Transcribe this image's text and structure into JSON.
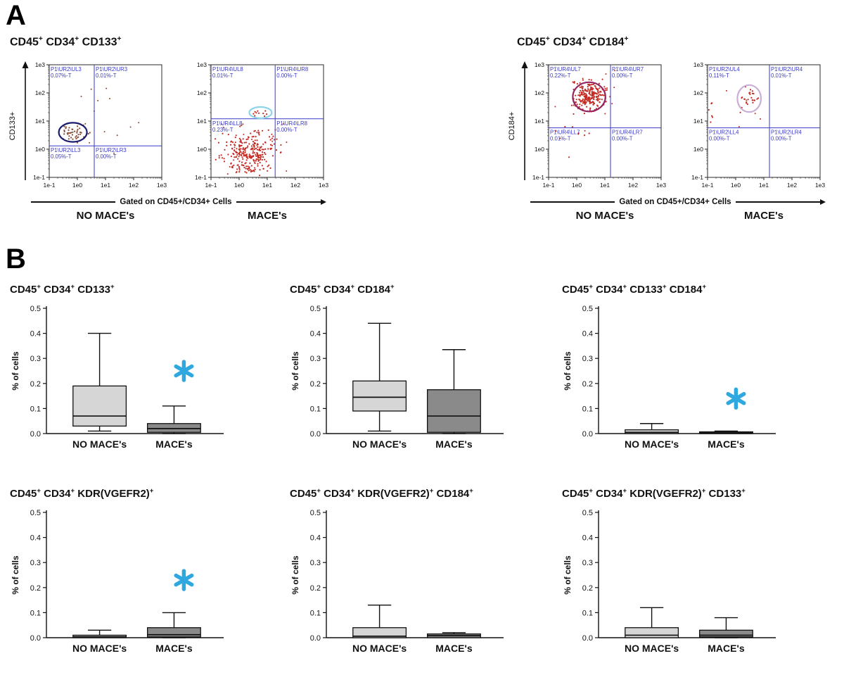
{
  "colors": {
    "asterisk": "#2fa8e0",
    "quadrant": "#3a3ac8",
    "frame": "#2a2a2a",
    "no_mace_fill": "#d6d6d6",
    "mace_fill": "#8a8a8a"
  },
  "panel_a": {
    "label": "A"
  },
  "panel_b": {
    "label": "B"
  },
  "chart_data": [
    {
      "type": "scatter",
      "group": "CD45+ CD34+ CD133+",
      "condition": "NO MACE's",
      "ylabel": "CD133+",
      "xlabel": "Gated on CD45+/CD34+ Cells",
      "x_ticks": [
        "1e-1",
        "1e0",
        "1e1",
        "1e2",
        "1e3"
      ],
      "y_ticks": [
        "1e-1",
        "1e0",
        "1e1",
        "1e2",
        "1e3"
      ],
      "cross": {
        "x": 0.4,
        "y": 0.28
      },
      "quadrants": [
        {
          "name": "P1\\UR2\\UL3",
          "value": "0.07%-T"
        },
        {
          "name": "P1\\UR2\\UR3",
          "value": "0.01%-T"
        },
        {
          "name": "P1\\UR2\\LL3",
          "value": "0.05%-T"
        },
        {
          "name": "P1\\UR2\\LR3",
          "value": "0.00%-T"
        }
      ],
      "gate_ellipse": {
        "cx": 0.21,
        "cy": 0.4,
        "rx": 0.125,
        "ry": 0.085,
        "color": "#1b1b6e"
      },
      "point_color": "#8a4a30",
      "clusters": [
        {
          "cx": 0.21,
          "cy": 0.39,
          "sx": 0.05,
          "sy": 0.04,
          "n": 42
        }
      ],
      "stray": {
        "n": 14,
        "x": [
          0.05,
          0.85
        ],
        "y": [
          0.1,
          0.8
        ]
      }
    },
    {
      "type": "scatter",
      "condition": "MACE's",
      "x_ticks": [
        "1e-1",
        "1e0",
        "1e1",
        "1e2",
        "1e3"
      ],
      "y_ticks": [
        "1e-1",
        "1e0",
        "1e1",
        "1e2",
        "1e3"
      ],
      "cross": {
        "x": 0.57,
        "y": 0.52
      },
      "quadrants": [
        {
          "name": "P1\\UR4\\UL8",
          "value": "0.01%-T"
        },
        {
          "name": "P1\\UR4\\UR8",
          "value": "0.00%-T"
        },
        {
          "name": "P1\\UR4\\LL8",
          "value": "0.23%-T"
        },
        {
          "name": "P1\\UR4\\LR8",
          "value": "0.00%-T"
        }
      ],
      "gate_ellipse": {
        "cx": 0.44,
        "cy": 0.575,
        "rx": 0.1,
        "ry": 0.05,
        "color": "#8fd4e8"
      },
      "point_color": "#c22a22",
      "clusters": [
        {
          "cx": 0.33,
          "cy": 0.22,
          "sx": 0.11,
          "sy": 0.1,
          "n": 280
        },
        {
          "cx": 0.44,
          "cy": 0.57,
          "sx": 0.045,
          "sy": 0.022,
          "n": 10
        }
      ],
      "stray": {
        "n": 25,
        "x": [
          0.08,
          0.7
        ],
        "y": [
          0.03,
          0.48
        ]
      }
    },
    {
      "type": "scatter",
      "group": "CD45+ CD34+ CD184+",
      "condition": "NO MACE's",
      "ylabel": "CD184+",
      "xlabel": "Gated on CD45+/CD34+ Cells",
      "x_ticks": [
        "1e-1",
        "1e0",
        "1e1",
        "1e2",
        "1e3"
      ],
      "y_ticks": [
        "1e-1",
        "1e0",
        "1e1",
        "1e2",
        "1e3"
      ],
      "cross": {
        "x": 0.55,
        "y": 0.44
      },
      "quadrants": [
        {
          "name": "P1\\UR4\\UL7",
          "value": "0.22%-T"
        },
        {
          "name": "P1\\UR4\\UR7",
          "value": "0.00%-T"
        },
        {
          "name": "P1\\UR4\\LL7",
          "value": "0.01%-T"
        },
        {
          "name": "P1\\UR4\\LR7",
          "value": "0.00%-T"
        }
      ],
      "gate_ellipse": {
        "cx": 0.36,
        "cy": 0.715,
        "rx": 0.145,
        "ry": 0.13,
        "color": "#93255f"
      },
      "point_color": "#c22a22",
      "clusters": [
        {
          "cx": 0.36,
          "cy": 0.72,
          "sx": 0.07,
          "sy": 0.06,
          "n": 230
        },
        {
          "cx": 0.25,
          "cy": 0.42,
          "sx": 0.08,
          "sy": 0.08,
          "n": 8
        }
      ],
      "stray": {
        "n": 10,
        "x": [
          0.05,
          0.6
        ],
        "y": [
          0.3,
          0.95
        ]
      }
    },
    {
      "type": "scatter",
      "condition": "MACE's",
      "x_ticks": [
        "1e-1",
        "1e0",
        "1e1",
        "1e2",
        "1e3"
      ],
      "y_ticks": [
        "1e-1",
        "1e0",
        "1e1",
        "1e2",
        "1e3"
      ],
      "cross": {
        "x": 0.55,
        "y": 0.44
      },
      "quadrants": [
        {
          "name": "P1\\UR2\\UL4",
          "value": "0.11%-T"
        },
        {
          "name": "P1\\UR2\\UR4",
          "value": "0.01%-T"
        },
        {
          "name": "P1\\UR2\\LL4",
          "value": "0.00%-T"
        },
        {
          "name": "P1\\UR2\\LR4",
          "value": "0.00%-T"
        }
      ],
      "gate_ellipse": {
        "cx": 0.37,
        "cy": 0.7,
        "rx": 0.105,
        "ry": 0.12,
        "color": "#c9aed8"
      },
      "point_color": "#c22a22",
      "clusters": [
        {
          "cx": 0.37,
          "cy": 0.7,
          "sx": 0.05,
          "sy": 0.07,
          "n": 26
        },
        {
          "cx": 0.03,
          "cy": 0.6,
          "sx": 0.015,
          "sy": 0.07,
          "n": 7
        }
      ],
      "stray": {
        "n": 5,
        "x": [
          0.05,
          0.5
        ],
        "y": [
          0.4,
          0.9
        ]
      }
    },
    {
      "type": "box",
      "title": "CD45+ CD34+ CD133+",
      "ylabel": "% of cells",
      "ylim": [
        0,
        0.5
      ],
      "yticks": [
        "0.0",
        "0.1",
        "0.2",
        "0.3",
        "0.4",
        "0.5"
      ],
      "categories": [
        "NO MACE's",
        "MACE's"
      ],
      "boxes": [
        {
          "low": 0.01,
          "q1": 0.03,
          "median": 0.07,
          "q3": 0.19,
          "high": 0.4,
          "fill": "#d6d6d6"
        },
        {
          "low": 0.0,
          "q1": 0.005,
          "median": 0.02,
          "q3": 0.04,
          "high": 0.11,
          "fill": "#8a8a8a"
        }
      ],
      "significance": {
        "index": 1,
        "y": 0.25
      }
    },
    {
      "type": "box",
      "title": "CD45+ CD34+ CD184+",
      "ylabel": "% of cells",
      "ylim": [
        0,
        0.5
      ],
      "yticks": [
        "0.0",
        "0.1",
        "0.2",
        "0.3",
        "0.4",
        "0.5"
      ],
      "categories": [
        "NO MACE's",
        "MACE's"
      ],
      "boxes": [
        {
          "low": 0.01,
          "q1": 0.09,
          "median": 0.145,
          "q3": 0.21,
          "high": 0.44,
          "fill": "#d6d6d6"
        },
        {
          "low": 0.0,
          "q1": 0.005,
          "median": 0.07,
          "q3": 0.175,
          "high": 0.335,
          "fill": "#8a8a8a"
        }
      ]
    },
    {
      "type": "box",
      "title": "CD45+ CD34+ CD133+ CD184+",
      "ylabel": "% of cells",
      "ylim": [
        0,
        0.5
      ],
      "yticks": [
        "0.0",
        "0.1",
        "0.2",
        "0.3",
        "0.4",
        "0.5"
      ],
      "categories": [
        "NO MACE's",
        "MACE's"
      ],
      "boxes": [
        {
          "low": 0.0,
          "q1": 0.0,
          "median": 0.005,
          "q3": 0.015,
          "high": 0.04,
          "fill": "#d6d6d6"
        },
        {
          "low": 0.0,
          "q1": 0.0,
          "median": 0.003,
          "q3": 0.007,
          "high": 0.01,
          "fill": "#8a8a8a"
        }
      ],
      "significance": {
        "index": 1,
        "y": 0.14
      }
    },
    {
      "type": "box",
      "title": "CD45+ CD34+ KDR(VGEFR2)+",
      "ylabel": "% of cells",
      "ylim": [
        0,
        0.5
      ],
      "yticks": [
        "0.0",
        "0.1",
        "0.2",
        "0.3",
        "0.4",
        "0.5"
      ],
      "categories": [
        "NO MACE's",
        "MACE's"
      ],
      "boxes": [
        {
          "low": 0.0,
          "q1": 0.0,
          "median": 0.004,
          "q3": 0.01,
          "high": 0.03,
          "fill": "#d6d6d6"
        },
        {
          "low": 0.0,
          "q1": 0.003,
          "median": 0.012,
          "q3": 0.04,
          "high": 0.1,
          "fill": "#8a8a8a"
        }
      ],
      "significance": {
        "index": 1,
        "y": 0.23
      }
    },
    {
      "type": "box",
      "title": "CD45+ CD34+ KDR(VGEFR2)+ CD184+",
      "ylabel": "% of cells",
      "ylim": [
        0,
        0.5
      ],
      "yticks": [
        "0.0",
        "0.1",
        "0.2",
        "0.3",
        "0.4",
        "0.5"
      ],
      "categories": [
        "NO MACE's",
        "MACE's"
      ],
      "boxes": [
        {
          "low": 0.0,
          "q1": 0.0,
          "median": 0.006,
          "q3": 0.04,
          "high": 0.13,
          "fill": "#d6d6d6"
        },
        {
          "low": 0.0,
          "q1": 0.0,
          "median": 0.008,
          "q3": 0.015,
          "high": 0.02,
          "fill": "#8a8a8a"
        }
      ]
    },
    {
      "type": "box",
      "title": "CD45+ CD34+ KDR(VGEFR2)+ CD133+",
      "ylabel": "% of cells",
      "ylim": [
        0,
        0.5
      ],
      "yticks": [
        "0.0",
        "0.1",
        "0.2",
        "0.3",
        "0.4",
        "0.5"
      ],
      "categories": [
        "NO MACE's",
        "MACE's"
      ],
      "boxes": [
        {
          "low": 0.0,
          "q1": 0.0,
          "median": 0.01,
          "q3": 0.04,
          "high": 0.12,
          "fill": "#d6d6d6"
        },
        {
          "low": 0.0,
          "q1": 0.003,
          "median": 0.01,
          "q3": 0.03,
          "high": 0.08,
          "fill": "#8a8a8a"
        }
      ]
    }
  ]
}
